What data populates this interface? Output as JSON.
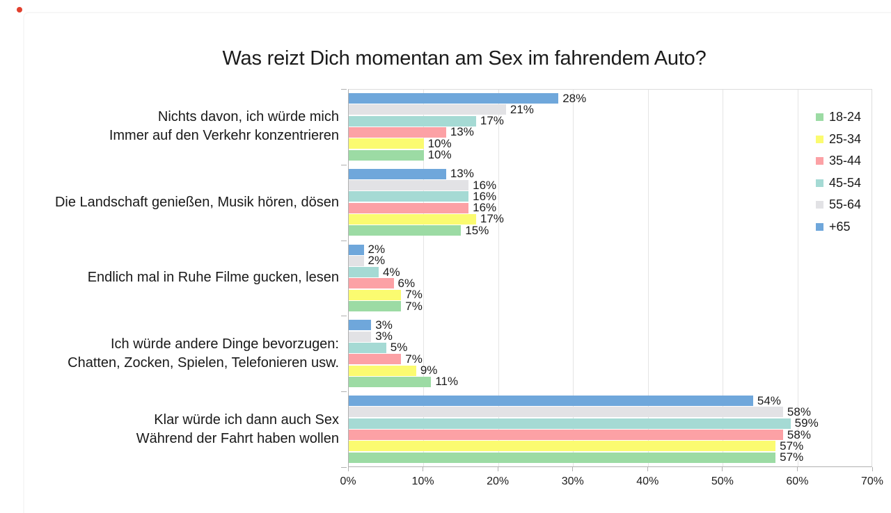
{
  "decorations": {
    "dot_color": "#e2402e"
  },
  "chart_data": {
    "type": "bar",
    "orientation": "horizontal",
    "title": "Was reizt Dich momentan am Sex im fahrendem Auto?",
    "categories": [
      {
        "lines": [
          "Nichts davon, ich würde mich",
          "Immer auf den Verkehr konzentrieren"
        ]
      },
      {
        "lines": [
          "Die Landschaft genießen, Musik hören, dösen"
        ]
      },
      {
        "lines": [
          "Endlich mal in Ruhe Filme gucken, lesen"
        ]
      },
      {
        "lines": [
          "Ich würde andere Dinge bevorzugen:",
          "Chatten, Zocken, Spielen, Telefonieren usw."
        ]
      },
      {
        "lines": [
          "Klar würde ich dann auch Sex",
          "Während der Fahrt haben wollen"
        ]
      }
    ],
    "series": [
      {
        "name": "18-24",
        "color": "#9cdba4",
        "values": [
          10,
          15,
          7,
          11,
          57
        ]
      },
      {
        "name": "25-34",
        "color": "#fbfb70",
        "values": [
          10,
          17,
          7,
          9,
          57
        ]
      },
      {
        "name": "35-44",
        "color": "#fca1a5",
        "values": [
          13,
          16,
          6,
          7,
          58
        ]
      },
      {
        "name": "45-54",
        "color": "#a5dad4",
        "values": [
          17,
          16,
          4,
          5,
          59
        ]
      },
      {
        "name": "55-64",
        "color": "#e2e2e5",
        "values": [
          21,
          16,
          2,
          3,
          58
        ]
      },
      {
        "name": "+65",
        "color": "#6fa7db",
        "values": [
          28,
          13,
          2,
          3,
          54
        ]
      }
    ],
    "bar_order_top_to_bottom": [
      "+65",
      "55-64",
      "45-54",
      "35-44",
      "25-34",
      "18-24"
    ],
    "value_suffix": "%",
    "xlim": [
      0,
      70
    ],
    "x_ticks": [
      "0%",
      "10%",
      "20%",
      "30%",
      "40%",
      "50%",
      "60%",
      "70%"
    ],
    "grid": true,
    "legend_position": "right-inside"
  },
  "legend": [
    {
      "label": "18-24",
      "color": "#9cdba4"
    },
    {
      "label": "25-34",
      "color": "#fbfb70"
    },
    {
      "label": "35-44",
      "color": "#fca1a5"
    },
    {
      "label": "45-54",
      "color": "#a5dad4"
    },
    {
      "label": "55-64",
      "color": "#e2e2e5"
    },
    {
      "label": "+65",
      "color": "#6fa7db"
    }
  ]
}
